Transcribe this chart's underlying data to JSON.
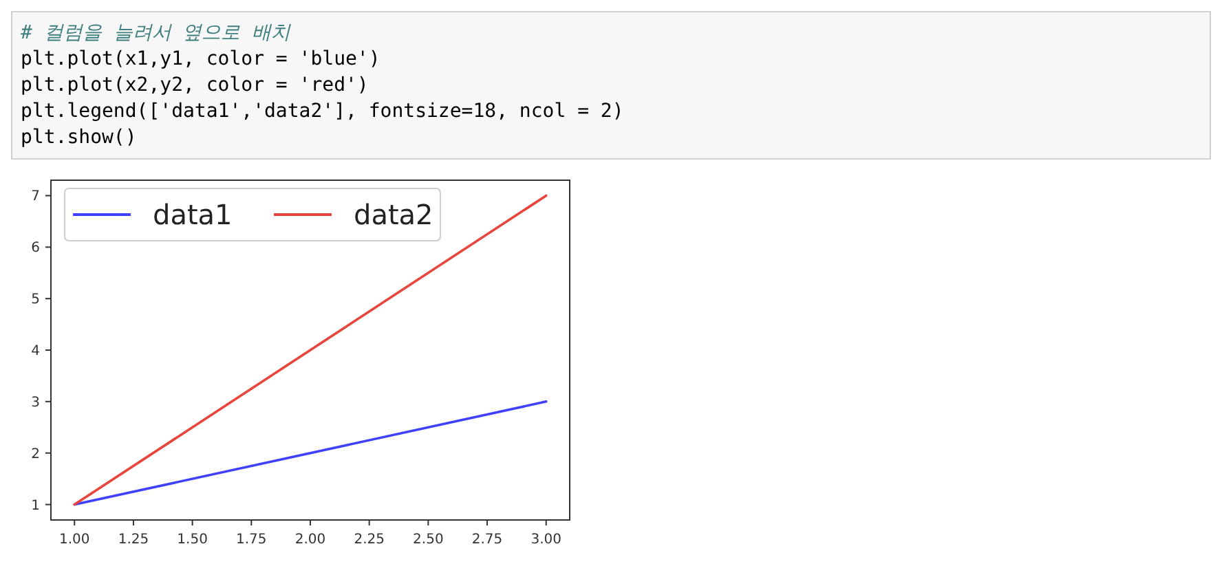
{
  "chart_data": {
    "type": "line",
    "annotations": [
      "# 컬럼을 늘려서 옆으로 배치",
      "plt.plot(x1,y1, color = 'blue')",
      "plt.plot(x2,y2, color = 'red')",
      "plt.legend(['data1','data2'], fontsize=18, ncol = 2)",
      "plt.show()"
    ],
    "series": [
      {
        "name": "data1",
        "color": "#4040ff",
        "x": [
          1,
          2,
          3
        ],
        "values": [
          1,
          2,
          3
        ]
      },
      {
        "name": "data2",
        "color": "#e8453c",
        "x": [
          1,
          2,
          3
        ],
        "values": [
          1,
          4,
          7
        ]
      }
    ],
    "xlim": [
      0.9,
      3.1
    ],
    "ylim": [
      0.7,
      7.3
    ],
    "xticks": [
      {
        "value": 1,
        "label": "1.00"
      },
      {
        "value": 1.25,
        "label": "1.25"
      },
      {
        "value": 1.5,
        "label": "1.50"
      },
      {
        "value": 1.75,
        "label": "1.75"
      },
      {
        "value": 2,
        "label": "2.00"
      },
      {
        "value": 2.25,
        "label": "2.25"
      },
      {
        "value": 2.5,
        "label": "2.50"
      },
      {
        "value": 2.75,
        "label": "2.75"
      },
      {
        "value": 3,
        "label": "3.00"
      }
    ],
    "yticks": [
      1,
      2,
      3,
      4,
      5,
      6,
      7
    ],
    "legend": "top left",
    "grid": false,
    "line_style": "solid"
  }
}
